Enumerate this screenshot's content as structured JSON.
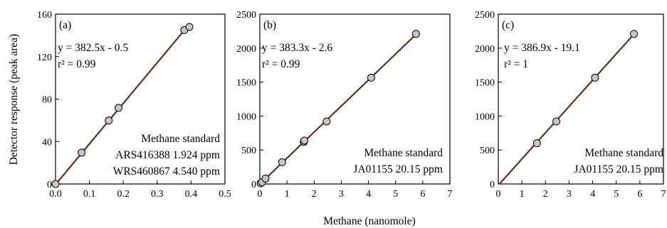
{
  "figure": {
    "shared_xlabel": "Methane (nanomole)",
    "shared_ylabel": "Detector response (peak area)",
    "colors": {
      "fit_line": "#5a3222",
      "marker_fill": "#c6c6c6",
      "marker_edge": "#000000",
      "axis": "#000000"
    }
  },
  "chart_data": [
    {
      "type": "scatter",
      "panel": "(a)",
      "xlim": [
        0.0,
        0.5
      ],
      "ylim": [
        0,
        160
      ],
      "x_ticks": [
        "0.0",
        "0.1",
        "0.2",
        "0.3",
        "0.4",
        "0.5"
      ],
      "y_ticks": [
        "0",
        "40",
        "80",
        "120",
        "160"
      ],
      "points": [
        [
          0.0,
          0
        ],
        [
          0.077,
          29.5
        ],
        [
          0.157,
          59.8
        ],
        [
          0.186,
          71.7
        ],
        [
          0.38,
          145
        ],
        [
          0.395,
          148
        ]
      ],
      "fit": {
        "slope": 382.5,
        "intercept": -0.5,
        "x_range": [
          0.0,
          0.385
        ]
      },
      "equation": "y = 382.5x - 0.5",
      "r2_label": "r² = 0.99",
      "note_lines": [
        "Methane standard",
        "ARS416388 1.924 ppm",
        "WRS460867 4.540 ppm"
      ]
    },
    {
      "type": "scatter",
      "panel": "(b)",
      "xlim": [
        0,
        7
      ],
      "ylim": [
        0,
        2500
      ],
      "x_ticks": [
        "0",
        "1",
        "2",
        "3",
        "4",
        "5",
        "6",
        "7"
      ],
      "y_ticks": [
        "0",
        "500",
        "1000",
        "1500",
        "2000",
        "2500"
      ],
      "points": [
        [
          0.03,
          10
        ],
        [
          0.08,
          25
        ],
        [
          0.21,
          80
        ],
        [
          0.82,
          320
        ],
        [
          1.62,
          620
        ],
        [
          1.64,
          640
        ],
        [
          2.46,
          920
        ],
        [
          4.1,
          1565
        ],
        [
          5.75,
          2210
        ]
      ],
      "fit": {
        "slope": 383.3,
        "intercept": -2.6,
        "x_range": [
          0.0,
          5.78
        ]
      },
      "equation": "y = 383.3x - 2.6",
      "r2_label": "r² = 0.99",
      "note_lines": [
        "Methane standard",
        "JA01155 20.15 ppm"
      ]
    },
    {
      "type": "scatter",
      "panel": "(c)",
      "xlim": [
        0,
        7
      ],
      "ylim": [
        0,
        2500
      ],
      "x_ticks": [
        "0",
        "1",
        "2",
        "3",
        "4",
        "5",
        "6",
        "7"
      ],
      "y_ticks": [
        "0",
        "500",
        "1000",
        "1500",
        "2000",
        "2500"
      ],
      "points": [
        [
          1.64,
          600
        ],
        [
          2.46,
          920
        ],
        [
          4.1,
          1565
        ],
        [
          5.75,
          2210
        ]
      ],
      "fit": {
        "slope": 386.9,
        "intercept": -19.1,
        "x_range": [
          0.0,
          5.78
        ]
      },
      "equation": "y = 386.9x - 19.1",
      "r2_label": "r² = 1",
      "note_lines": [
        "Methane standard",
        "JA01155 20.15 ppm"
      ]
    }
  ]
}
